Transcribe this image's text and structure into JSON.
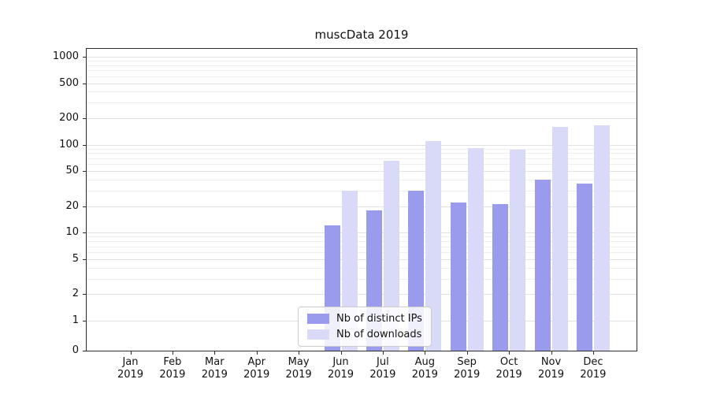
{
  "chart_data": {
    "type": "bar",
    "title": "muscData 2019",
    "categories": [
      "Jan 2019",
      "Feb 2019",
      "Mar 2019",
      "Apr 2019",
      "May 2019",
      "Jun 2019",
      "Jul 2019",
      "Aug 2019",
      "Sep 2019",
      "Oct 2019",
      "Nov 2019",
      "Dec 2019"
    ],
    "series": [
      {
        "name": "Nb of distinct IPs",
        "color": "#9b9bee",
        "values": [
          0,
          0,
          0,
          0,
          0,
          12,
          18,
          30,
          22,
          21,
          40,
          36
        ]
      },
      {
        "name": "Nb of downloads",
        "color": "#d9d9f8",
        "values": [
          0,
          0,
          0,
          0,
          0,
          30,
          65,
          110,
          92,
          87,
          160,
          165
        ]
      }
    ],
    "yticks": [
      0,
      1,
      2,
      5,
      10,
      20,
      50,
      100,
      200,
      500,
      1000
    ],
    "yscale": "symlog",
    "ylim": [
      0,
      1200
    ],
    "grid": true,
    "legend_position": "lower center"
  }
}
